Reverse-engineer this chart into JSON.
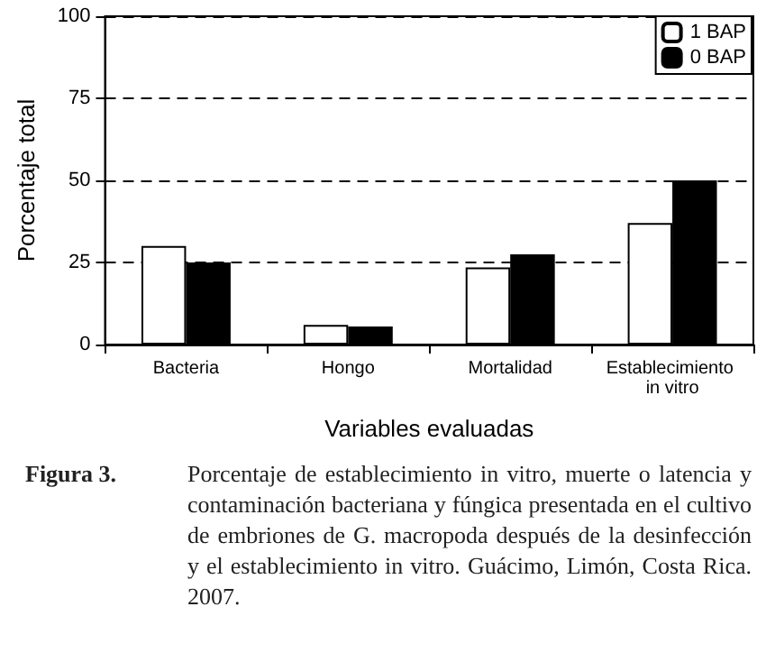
{
  "chart_data": {
    "type": "bar",
    "xlabel": "Variables evaluadas",
    "ylabel": "Porcentaje total",
    "categories": [
      "Bacteria",
      "Hongo",
      "Mortalidad",
      "Establecimiento in vitro"
    ],
    "series": [
      {
        "name": "1 BAP",
        "color": "#ffffff",
        "values": [
          30,
          6,
          23.5,
          37
        ]
      },
      {
        "name": "0 BAP",
        "color": "#000000",
        "values": [
          25,
          5.5,
          27.5,
          50
        ]
      }
    ],
    "ylim": [
      0,
      100
    ],
    "yticks": [
      0,
      25,
      50,
      75,
      100
    ],
    "grid": "y",
    "legend": "top right",
    "annotations": [
      "Figura 3.",
      "Porcentaje de establecimiento in vitro, muerte o latencia y contaminación bacteriana y fúngica presentada en el cultivo de embriones de G. macropoda después de la desinfección y el establecimiento in vitro. Guácimo, Limón, Costa Rica. 2007."
    ]
  }
}
